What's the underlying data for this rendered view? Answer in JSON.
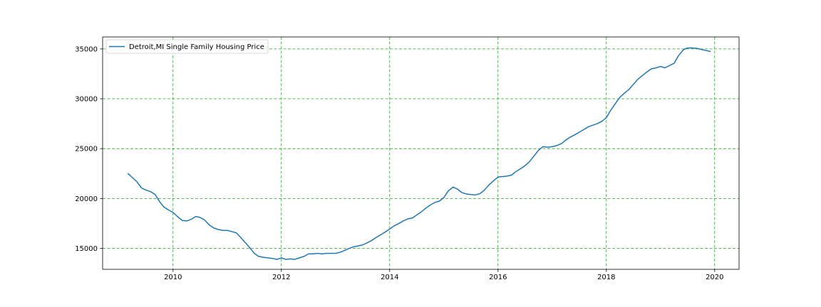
{
  "chart_data": {
    "type": "line",
    "title": "",
    "xlabel": "",
    "ylabel": "",
    "xlim": [
      2008.7,
      2020.45
    ],
    "ylim": [
      12900,
      36200
    ],
    "xticks": [
      2010,
      2012,
      2014,
      2016,
      2018,
      2020
    ],
    "xtick_labels": [
      "2010",
      "2012",
      "2014",
      "2016",
      "2018",
      "2020"
    ],
    "yticks": [
      15000,
      20000,
      25000,
      30000,
      35000
    ],
    "ytick_labels": [
      "15000",
      "20000",
      "25000",
      "30000",
      "35000"
    ],
    "grid": true,
    "grid_color": "#2ca02c",
    "legend_position": "upper-left",
    "colors": {
      "series": "#1f77b4",
      "grid": "#2ca02c",
      "axes": "#000000"
    },
    "series": [
      {
        "name": "Detroit,MI Single Family Housing Price",
        "x": [
          2009.17,
          2009.25,
          2009.33,
          2009.42,
          2009.5,
          2009.58,
          2009.67,
          2009.75,
          2009.83,
          2009.92,
          2010.0,
          2010.08,
          2010.17,
          2010.25,
          2010.33,
          2010.42,
          2010.5,
          2010.58,
          2010.67,
          2010.75,
          2010.83,
          2010.92,
          2011.0,
          2011.08,
          2011.17,
          2011.25,
          2011.33,
          2011.42,
          2011.5,
          2011.58,
          2011.67,
          2011.75,
          2011.83,
          2011.92,
          2012.0,
          2012.08,
          2012.17,
          2012.25,
          2012.33,
          2012.42,
          2012.5,
          2012.58,
          2012.67,
          2012.75,
          2012.83,
          2012.92,
          2013.0,
          2013.08,
          2013.17,
          2013.25,
          2013.33,
          2013.42,
          2013.5,
          2013.58,
          2013.67,
          2013.75,
          2013.83,
          2013.92,
          2014.0,
          2014.08,
          2014.17,
          2014.25,
          2014.33,
          2014.42,
          2014.5,
          2014.58,
          2014.67,
          2014.75,
          2014.83,
          2014.92,
          2015.0,
          2015.08,
          2015.17,
          2015.25,
          2015.33,
          2015.42,
          2015.5,
          2015.58,
          2015.67,
          2015.75,
          2015.83,
          2015.92,
          2016.0,
          2016.08,
          2016.17,
          2016.25,
          2016.33,
          2016.42,
          2016.5,
          2016.58,
          2016.67,
          2016.75,
          2016.83,
          2016.92,
          2017.0,
          2017.08,
          2017.17,
          2017.25,
          2017.33,
          2017.42,
          2017.5,
          2017.58,
          2017.67,
          2017.75,
          2017.83,
          2017.92,
          2018.0,
          2018.08,
          2018.17,
          2018.25,
          2018.33,
          2018.42,
          2018.5,
          2018.58,
          2018.67,
          2018.75,
          2018.83,
          2018.92,
          2019.0,
          2019.08,
          2019.17,
          2019.25,
          2019.33,
          2019.42,
          2019.5,
          2019.58,
          2019.67,
          2019.75,
          2019.83,
          2019.92
        ],
        "y": [
          22500,
          22100,
          21700,
          21050,
          20850,
          20700,
          20400,
          19700,
          19150,
          18850,
          18600,
          18200,
          17800,
          17750,
          17900,
          18200,
          18100,
          17850,
          17350,
          17050,
          16900,
          16800,
          16800,
          16700,
          16550,
          16100,
          15600,
          15050,
          14500,
          14200,
          14100,
          14050,
          14000,
          13900,
          14050,
          13900,
          13950,
          13900,
          14050,
          14200,
          14450,
          14450,
          14500,
          14450,
          14500,
          14500,
          14500,
          14600,
          14800,
          15000,
          15150,
          15250,
          15350,
          15550,
          15800,
          16100,
          16350,
          16650,
          16950,
          17250,
          17500,
          17750,
          17950,
          18050,
          18350,
          18650,
          19050,
          19350,
          19600,
          19750,
          20100,
          20750,
          21150,
          20950,
          20600,
          20450,
          20400,
          20350,
          20500,
          20850,
          21350,
          21800,
          22150,
          22200,
          22250,
          22350,
          22700,
          23000,
          23300,
          23700,
          24300,
          24850,
          25200,
          25150,
          25200,
          25300,
          25500,
          25850,
          26150,
          26400,
          26650,
          26900,
          27200,
          27350,
          27500,
          27750,
          28100,
          28850,
          29550,
          30150,
          30550,
          30950,
          31450,
          31950,
          32350,
          32700,
          33000,
          33100,
          33250,
          33100,
          33350,
          33550,
          34300,
          34900,
          35100,
          35100,
          35050,
          34950,
          34850,
          34750
        ]
      }
    ]
  }
}
